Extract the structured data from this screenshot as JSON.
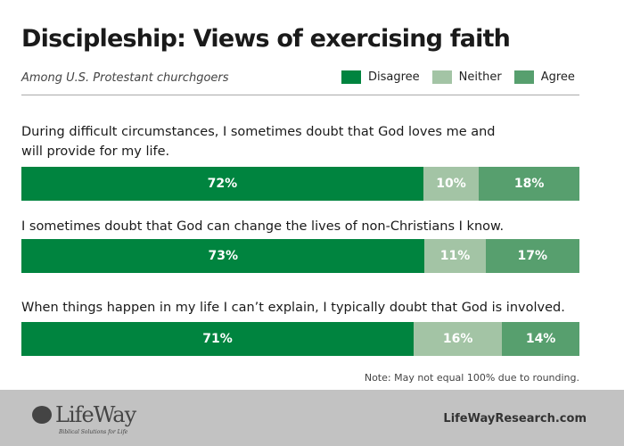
{
  "chart_data": {
    "type": "bar",
    "orientation": "horizontal-stacked",
    "title": "Discipleship: Views of exercising faith",
    "subtitle": "Among U.S. Protestant churchgoers",
    "legend": [
      "Disagree",
      "Neither",
      "Agree"
    ],
    "legend_placement": "top-right",
    "colors": {
      "Disagree": "#00843f",
      "Neither": "#a3c4a5",
      "Agree": "#579f6e"
    },
    "categories": [
      "During difficult circumstances, I sometimes doubt that God loves me and will provide for my life.",
      "I sometimes doubt that God can change the lives of non-Christians I know.",
      "When things happen in my life I can’t explain, I typically doubt that God is involved."
    ],
    "series": [
      {
        "name": "Disagree",
        "values": [
          72,
          73,
          71
        ],
        "labels": [
          "72%",
          "73%",
          "71%"
        ]
      },
      {
        "name": "Neither",
        "values": [
          10,
          11,
          16
        ],
        "labels": [
          "10%",
          "11%",
          "16%"
        ]
      },
      {
        "name": "Agree",
        "values": [
          18,
          17,
          14
        ],
        "labels": [
          "18%",
          "17%",
          "14%"
        ]
      }
    ],
    "note": "Note: May not equal 100% due to rounding."
  },
  "footer": {
    "logo": "LifeWay",
    "tagline": "Biblical Solutions for Life",
    "url": "LifeWayResearch.com"
  }
}
